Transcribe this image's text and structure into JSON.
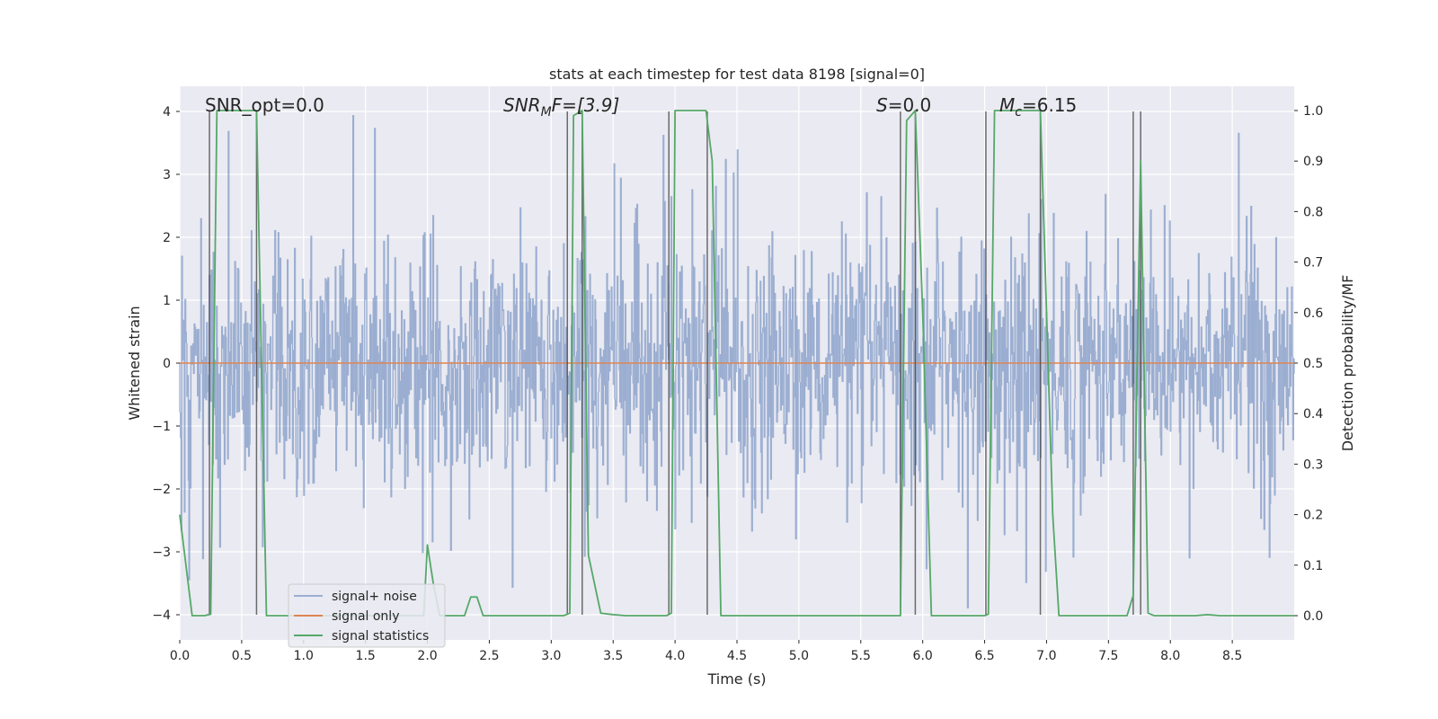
{
  "chart_data": {
    "type": "line",
    "title": "stats at each timestep for test data 8198 [signal=0]",
    "xlabel": "Time (s)",
    "ylabel": "Whitened strain",
    "y2label": "Detection probability/MF",
    "xlim": [
      0.0,
      9.0
    ],
    "ylim": [
      -4.4,
      4.4
    ],
    "y2lim": [
      -0.048,
      1.048
    ],
    "x_ticks": [
      0.0,
      0.5,
      1.0,
      1.5,
      2.0,
      2.5,
      3.0,
      3.5,
      4.0,
      4.5,
      5.0,
      5.5,
      6.0,
      6.5,
      7.0,
      7.5,
      8.0,
      8.5
    ],
    "x_tick_labels": [
      "0.0",
      "0.5",
      "1.0",
      "1.5",
      "2.0",
      "2.5",
      "3.0",
      "3.5",
      "4.0",
      "4.5",
      "5.0",
      "5.5",
      "6.0",
      "6.5",
      "7.0",
      "7.5",
      "8.0",
      "8.5"
    ],
    "y_ticks": [
      -4,
      -3,
      -2,
      -1,
      0,
      1,
      2,
      3,
      4
    ],
    "y_tick_labels": [
      "−4",
      "−3",
      "−2",
      "−1",
      "0",
      "1",
      "2",
      "3",
      "4"
    ],
    "y2_ticks": [
      0.0,
      0.1,
      0.2,
      0.3,
      0.4,
      0.5,
      0.6,
      0.7,
      0.8,
      0.9,
      1.0
    ],
    "y2_tick_labels": [
      "0.0",
      "0.1",
      "0.2",
      "0.3",
      "0.4",
      "0.5",
      "0.6",
      "0.7",
      "0.8",
      "0.9",
      "1.0"
    ],
    "annotations": {
      "snr_opt": "SNR_opt=0.0",
      "snr_mf_prefix": "SNR",
      "snr_mf_sub": "M",
      "snr_mf_rest": "F=[3.9]",
      "s_prefix": "S",
      "s_rest": "=0.0",
      "mc_prefix": "M",
      "mc_sub": "c",
      "mc_rest": "=6.15"
    },
    "legend": {
      "position": "lower-left",
      "entries": [
        "signal+ noise",
        "signal only",
        "signal statistics"
      ]
    },
    "series": [
      {
        "name": "signal+ noise",
        "color": "#4c72b0",
        "axis": "left",
        "description": "whitened noisy strain, roughly within -2.5 to 2.5 with spikes up to about 4 and down to about -3.9"
      },
      {
        "name": "signal only",
        "color": "#dd8452",
        "axis": "left",
        "x": [
          0.0,
          9.0
        ],
        "y": [
          0.0,
          0.0
        ]
      },
      {
        "name": "signal statistics",
        "color": "#55a868",
        "axis": "right",
        "x": [
          0.0,
          0.05,
          0.1,
          0.2,
          0.25,
          0.3,
          0.62,
          0.7,
          1.0,
          1.9,
          1.97,
          2.0,
          2.05,
          2.1,
          2.3,
          2.35,
          2.4,
          2.45,
          3.0,
          3.1,
          3.15,
          3.18,
          3.25,
          3.3,
          3.4,
          3.5,
          3.6,
          3.93,
          3.97,
          4.0,
          4.25,
          4.3,
          4.37,
          4.45,
          5.5,
          5.82,
          5.87,
          5.94,
          6.0,
          6.07,
          6.5,
          6.53,
          6.58,
          6.95,
          7.05,
          7.1,
          7.4,
          7.65,
          7.7,
          7.76,
          7.82,
          7.87,
          8.2,
          8.3,
          8.4,
          9.0
        ],
        "y": [
          0.2,
          0.1,
          0.0,
          0.0,
          0.003,
          1.0,
          1.0,
          0.0,
          0.0,
          0.0,
          0.0,
          0.14,
          0.06,
          0.0,
          0.0,
          0.037,
          0.037,
          0.0,
          0.0,
          0.0,
          0.005,
          0.99,
          1.0,
          0.12,
          0.005,
          0.002,
          0.0,
          0.0,
          0.005,
          1.0,
          1.0,
          0.9,
          0.0,
          0.0,
          0.0,
          0.0,
          0.98,
          1.0,
          0.6,
          0.0,
          0.0,
          0.003,
          1.0,
          1.0,
          0.2,
          0.0,
          0.0,
          0.0,
          0.04,
          0.9,
          0.005,
          0.0,
          0.0,
          0.002,
          0.0,
          0.0
        ]
      }
    ],
    "vertical_markers": [
      0.24,
      0.62,
      3.13,
      3.25,
      3.95,
      4.26,
      5.82,
      5.94,
      6.51,
      6.95,
      7.7,
      7.76
    ],
    "vertical_marker_range": [
      -4.0,
      4.0
    ],
    "grid": true
  }
}
